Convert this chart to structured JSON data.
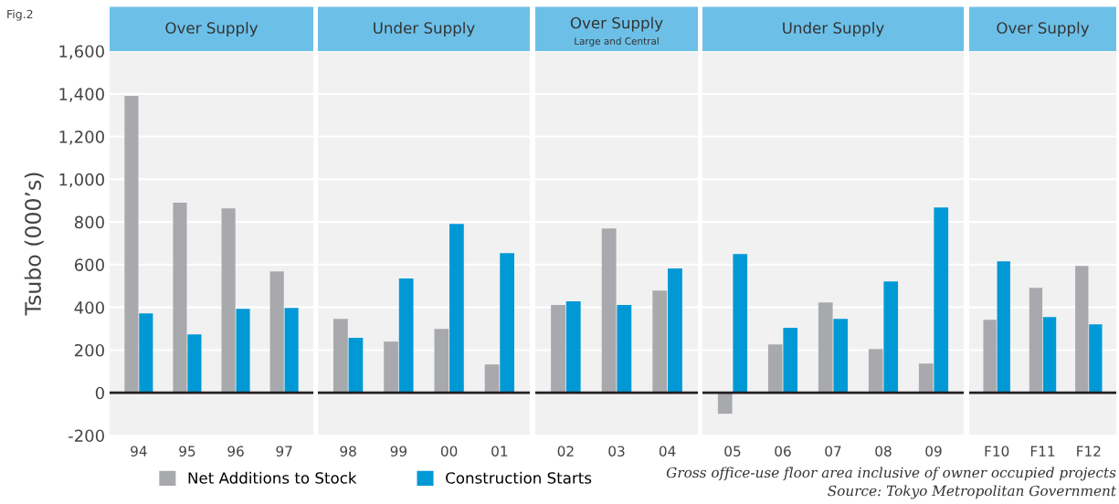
{
  "chart_data": [
    {
      "type": "bar",
      "title": "Over Supply",
      "ylabel": "Tsubo (000’s)",
      "categories": [
        "94",
        "95",
        "96",
        "97"
      ],
      "series": [
        {
          "name": "Net Additions to Stock",
          "color": "#a7a9ac",
          "values": [
            1390,
            890,
            864,
            569
          ]
        },
        {
          "name": "Construction Starts",
          "color": "#0099d6",
          "values": [
            372,
            274,
            393,
            398
          ]
        }
      ],
      "ylim": [
        -200,
        1600
      ],
      "yticks": [
        {
          "value": -200,
          "label": "-200"
        },
        0,
        200,
        400,
        600,
        800,
        {
          "value": 1000,
          "label": "1,000"
        },
        {
          "value": 1200,
          "label": "1,200"
        },
        {
          "value": 1400,
          "label": "1,400"
        },
        {
          "value": 1600,
          "label": "1,600"
        }
      ],
      "grid": "y",
      "legend": "bottom",
      "ref_lines": [
        {
          "axis": "y",
          "value": 0,
          "color": "#231f20"
        }
      ],
      "annotations": [
        "Fig.2"
      ]
    },
    {
      "type": "bar",
      "title": "Under Supply",
      "categories": [
        "98",
        "99",
        "00",
        "01"
      ],
      "series": [
        {
          "color": "#a7a9ac",
          "values": [
            346,
            240,
            299,
            133
          ]
        },
        {
          "color": "#0099d6",
          "values": [
            257,
            535,
            791,
            654
          ]
        }
      ],
      "ylim": [
        -200,
        1600
      ],
      "yticks": [
        -200,
        0,
        200,
        400,
        600,
        800,
        1000,
        1200,
        1400,
        1600
      ],
      "tick_labels": "x",
      "grid": "y",
      "ref_lines": [
        {
          "axis": "y",
          "value": 0,
          "color": "#231f20"
        }
      ]
    },
    {
      "type": "bar",
      "title": "Over Supply",
      "subtitle": "Large and Central",
      "categories": [
        "02",
        "03",
        "04"
      ],
      "series": [
        {
          "color": "#a7a9ac",
          "values": [
            411,
            770,
            479
          ]
        },
        {
          "color": "#0099d6",
          "values": [
            428,
            411,
            582
          ]
        }
      ],
      "ylim": [
        -200,
        1600
      ],
      "yticks": [
        -200,
        0,
        200,
        400,
        600,
        800,
        1000,
        1200,
        1400,
        1600
      ],
      "tick_labels": "x",
      "grid": "y",
      "ref_lines": [
        {
          "axis": "y",
          "value": 0,
          "color": "#231f20"
        }
      ]
    },
    {
      "type": "bar",
      "title": "Under Supply",
      "categories": [
        "05",
        "06",
        "07",
        "08",
        "09"
      ],
      "series": [
        {
          "color": "#a7a9ac",
          "values": [
            -98,
            227,
            423,
            205,
            137
          ]
        },
        {
          "color": "#0099d6",
          "values": [
            650,
            304,
            346,
            522,
            868
          ]
        }
      ],
      "ylim": [
        -200,
        1600
      ],
      "yticks": [
        -200,
        0,
        200,
        400,
        600,
        800,
        1000,
        1200,
        1400,
        1600
      ],
      "tick_labels": "x",
      "grid": "y",
      "ref_lines": [
        {
          "axis": "y",
          "value": 0,
          "color": "#231f20"
        }
      ]
    },
    {
      "type": "bar",
      "title": "Over Supply",
      "categories": [
        "F10",
        "F11",
        "F12"
      ],
      "series": [
        {
          "color": "#a7a9ac",
          "values": [
            342,
            492,
            594
          ]
        },
        {
          "color": "#0099d6",
          "values": [
            616,
            355,
            321
          ]
        }
      ],
      "ylim": [
        -200,
        1600
      ],
      "yticks": [
        -200,
        0,
        200,
        400,
        600,
        800,
        1000,
        1200,
        1400,
        1600
      ],
      "tick_labels": "x",
      "grid": "y",
      "ref_lines": [
        {
          "axis": "y",
          "value": 0,
          "color": "#231f20"
        }
      ],
      "annotations": [
        "Gross office-use floor area inclusive of owner occupied projects",
        "Source: Tokyo Metropolitan Government"
      ]
    }
  ]
}
